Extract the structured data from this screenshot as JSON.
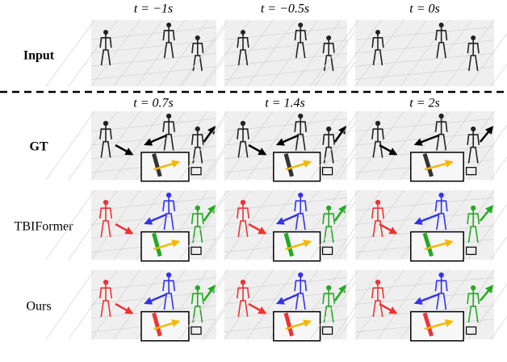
{
  "input_row": {
    "label": "Input",
    "times": [
      "t = −1s",
      "t = −0.5s",
      "t = 0s"
    ]
  },
  "prediction_rows": {
    "times": [
      "t = 0.7s",
      "t = 1.4s",
      "t = 2s"
    ],
    "labels": [
      "GT",
      "TBIFormer",
      "Ours"
    ]
  }
}
